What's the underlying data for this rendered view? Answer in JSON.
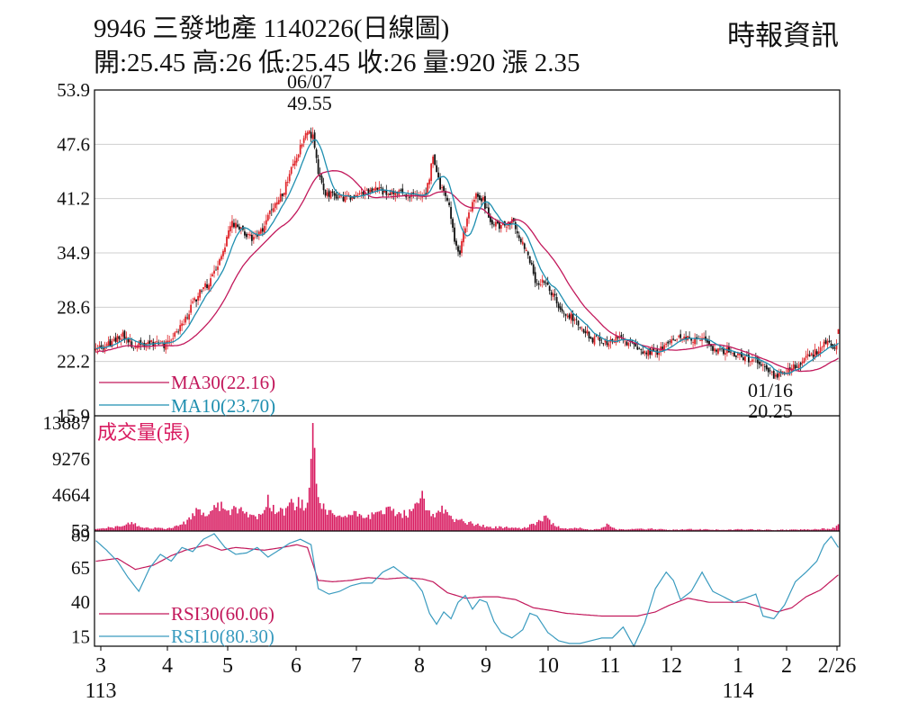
{
  "header": {
    "title": "9946  三發地產 1140226(日線圖)",
    "stats": "開:25.45 高:26 低:25.45 收:26 量:920 漲 2.35",
    "source": "時報資訊"
  },
  "colors": {
    "up": "#e0262b",
    "down": "#111111",
    "ma30": "#c2185b",
    "ma10": "#1f8fb0",
    "volume": "#d81b60",
    "rsi30": "#c2185b",
    "rsi10": "#3a9bbf",
    "frame": "#000000",
    "grid": "#cfcfcf"
  },
  "chart_data": [
    {
      "type": "candlestick",
      "panel": "price",
      "ylim": [
        15.9,
        53.9
      ],
      "yticks": [
        "53.9",
        "47.6",
        "41.2",
        "34.9",
        "28.6",
        "22.2",
        "15.9"
      ],
      "grid": true,
      "xticks": [
        {
          "label": "3",
          "sub": "113"
        },
        {
          "label": "4"
        },
        {
          "label": "5"
        },
        {
          "label": "6"
        },
        {
          "label": "7"
        },
        {
          "label": "8"
        },
        {
          "label": "9"
        },
        {
          "label": "10"
        },
        {
          "label": "11"
        },
        {
          "label": "12"
        },
        {
          "label": "1",
          "sub": "114"
        },
        {
          "label": "2"
        },
        {
          "label": "2/26"
        }
      ],
      "close_path": [
        [
          0,
          23.5
        ],
        [
          8,
          24.5
        ],
        [
          15,
          25.2
        ],
        [
          22,
          24.0
        ],
        [
          30,
          24.5
        ],
        [
          38,
          24.2
        ],
        [
          45,
          25.5
        ],
        [
          52,
          28.0
        ],
        [
          58,
          30.5
        ],
        [
          64,
          31.5
        ],
        [
          70,
          34.5
        ],
        [
          76,
          38.5
        ],
        [
          82,
          37.5
        ],
        [
          88,
          36.5
        ],
        [
          94,
          38.0
        ],
        [
          100,
          41.0
        ],
        [
          105,
          42.0
        ],
        [
          109,
          45.0
        ],
        [
          113,
          46.5
        ],
        [
          117,
          49.0
        ],
        [
          121,
          48.5
        ],
        [
          124,
          44.5
        ],
        [
          128,
          42.0
        ],
        [
          135,
          41.3
        ],
        [
          145,
          41.5
        ],
        [
          155,
          42.3
        ],
        [
          165,
          42.0
        ],
        [
          175,
          41.5
        ],
        [
          184,
          41.5
        ],
        [
          188,
          46.0
        ],
        [
          192,
          42.5
        ],
        [
          197,
          40.5
        ],
        [
          200,
          36.0
        ],
        [
          203,
          35.0
        ],
        [
          207,
          39.0
        ],
        [
          212,
          41.5
        ],
        [
          216,
          41.0
        ],
        [
          220,
          38.5
        ],
        [
          225,
          38.0
        ],
        [
          232,
          38.5
        ],
        [
          236,
          37.0
        ],
        [
          242,
          34.0
        ],
        [
          246,
          31.0
        ],
        [
          250,
          31.5
        ],
        [
          255,
          30.0
        ],
        [
          260,
          28.0
        ],
        [
          265,
          27.5
        ],
        [
          270,
          26.5
        ],
        [
          276,
          25.0
        ],
        [
          282,
          24.5
        ],
        [
          290,
          24.8
        ],
        [
          298,
          24.5
        ],
        [
          305,
          23.5
        ],
        [
          312,
          23.3
        ],
        [
          320,
          24.5
        ],
        [
          326,
          25.0
        ],
        [
          332,
          25.0
        ],
        [
          340,
          24.5
        ],
        [
          346,
          23.5
        ],
        [
          352,
          23.5
        ],
        [
          358,
          23.0
        ],
        [
          365,
          22.5
        ],
        [
          372,
          22.0
        ],
        [
          378,
          20.5
        ],
        [
          383,
          21.0
        ],
        [
          388,
          21.5
        ],
        [
          392,
          22.0
        ],
        [
          396,
          22.5
        ],
        [
          402,
          23.5
        ],
        [
          406,
          24.5
        ],
        [
          412,
          24.0
        ],
        [
          414,
          26.0
        ]
      ],
      "high_mark": {
        "date": "06/07",
        "value": 49.55,
        "index": 121
      },
      "low_mark": {
        "date": "01/16",
        "value": 20.25,
        "index": 378
      },
      "series": [
        {
          "name": "MA30",
          "legend": "MA30(22.16)",
          "last": 22.16
        },
        {
          "name": "MA10",
          "legend": "MA10(23.70)",
          "last": 23.7
        }
      ]
    },
    {
      "type": "bar",
      "panel": "volume",
      "title": "成交量(張)",
      "ylim": [
        53,
        13887
      ],
      "yticks": [
        "13887",
        "9276",
        "4664",
        "53"
      ],
      "spikes": [
        [
          0,
          300
        ],
        [
          12,
          700
        ],
        [
          20,
          1200
        ],
        [
          28,
          500
        ],
        [
          40,
          400
        ],
        [
          48,
          900
        ],
        [
          52,
          1800
        ],
        [
          56,
          3000
        ],
        [
          60,
          2400
        ],
        [
          64,
          2600
        ],
        [
          70,
          3800
        ],
        [
          74,
          2700
        ],
        [
          78,
          3100
        ],
        [
          84,
          2500
        ],
        [
          88,
          2100
        ],
        [
          93,
          2300
        ],
        [
          96,
          4700
        ],
        [
          99,
          3400
        ],
        [
          104,
          2900
        ],
        [
          108,
          3700
        ],
        [
          113,
          4400
        ],
        [
          117,
          3000
        ],
        [
          119,
          5600
        ],
        [
          120,
          9300
        ],
        [
          121,
          13887
        ],
        [
          122,
          10700
        ],
        [
          124,
          4400
        ],
        [
          128,
          2800
        ],
        [
          135,
          2000
        ],
        [
          145,
          2600
        ],
        [
          155,
          2200
        ],
        [
          162,
          3100
        ],
        [
          170,
          2300
        ],
        [
          176,
          2600
        ],
        [
          180,
          3600
        ],
        [
          182,
          5200
        ],
        [
          185,
          2700
        ],
        [
          190,
          2400
        ],
        [
          193,
          3300
        ],
        [
          198,
          2000
        ],
        [
          203,
          1500
        ],
        [
          208,
          1200
        ],
        [
          213,
          1000
        ],
        [
          220,
          600
        ],
        [
          226,
          600
        ],
        [
          232,
          500
        ],
        [
          238,
          400
        ],
        [
          242,
          900
        ],
        [
          246,
          1200
        ],
        [
          250,
          2000
        ],
        [
          253,
          1500
        ],
        [
          256,
          700
        ],
        [
          262,
          400
        ],
        [
          270,
          500
        ],
        [
          275,
          200
        ],
        [
          280,
          300
        ],
        [
          285,
          1000
        ],
        [
          290,
          300
        ],
        [
          300,
          300
        ],
        [
          310,
          400
        ],
        [
          320,
          200
        ],
        [
          330,
          300
        ],
        [
          340,
          300
        ],
        [
          350,
          200
        ],
        [
          360,
          300
        ],
        [
          370,
          250
        ],
        [
          380,
          200
        ],
        [
          390,
          250
        ],
        [
          400,
          250
        ],
        [
          405,
          400
        ],
        [
          410,
          300
        ],
        [
          414,
          920
        ]
      ],
      "last": 920
    },
    {
      "type": "line",
      "panel": "rsi",
      "ylim": [
        8,
        92
      ],
      "yticks": [
        "89",
        "65",
        "40",
        "15"
      ],
      "series": [
        {
          "name": "RSI30",
          "legend": "RSI30(60.06)",
          "last": 60.06,
          "values": [
            [
              0,
              70
            ],
            [
              12,
              72
            ],
            [
              22,
              64
            ],
            [
              32,
              67
            ],
            [
              42,
              74
            ],
            [
              50,
              78
            ],
            [
              62,
              82
            ],
            [
              70,
              78
            ],
            [
              78,
              80
            ],
            [
              86,
              79
            ],
            [
              94,
              78
            ],
            [
              104,
              80
            ],
            [
              112,
              82
            ],
            [
              118,
              80
            ],
            [
              124,
              56
            ],
            [
              132,
              55
            ],
            [
              142,
              56
            ],
            [
              152,
              58
            ],
            [
              162,
              57
            ],
            [
              172,
              58
            ],
            [
              182,
              57
            ],
            [
              188,
              55
            ],
            [
              196,
              47
            ],
            [
              206,
              43
            ],
            [
              216,
              44
            ],
            [
              224,
              44
            ],
            [
              234,
              42
            ],
            [
              244,
              36
            ],
            [
              254,
              34
            ],
            [
              262,
              32
            ],
            [
              272,
              31
            ],
            [
              282,
              30
            ],
            [
              292,
              30
            ],
            [
              302,
              30
            ],
            [
              312,
              33
            ],
            [
              320,
              38
            ],
            [
              330,
              43
            ],
            [
              342,
              40
            ],
            [
              352,
              40
            ],
            [
              362,
              40
            ],
            [
              372,
              36
            ],
            [
              380,
              33
            ],
            [
              388,
              36
            ],
            [
              396,
              44
            ],
            [
              404,
              49
            ],
            [
              414,
              60
            ]
          ]
        },
        {
          "name": "RSI10",
          "legend": "RSI10(80.30)",
          "last": 80.3,
          "values": [
            [
              0,
              85
            ],
            [
              6,
              78
            ],
            [
              12,
              70
            ],
            [
              18,
              58
            ],
            [
              24,
              48
            ],
            [
              30,
              65
            ],
            [
              36,
              75
            ],
            [
              42,
              70
            ],
            [
              48,
              80
            ],
            [
              54,
              77
            ],
            [
              60,
              86
            ],
            [
              66,
              90
            ],
            [
              72,
              80
            ],
            [
              78,
              75
            ],
            [
              84,
              76
            ],
            [
              90,
              80
            ],
            [
              96,
              73
            ],
            [
              102,
              78
            ],
            [
              108,
              83
            ],
            [
              114,
              86
            ],
            [
              120,
              82
            ],
            [
              124,
              50
            ],
            [
              130,
              46
            ],
            [
              136,
              48
            ],
            [
              142,
              52
            ],
            [
              148,
              54
            ],
            [
              154,
              54
            ],
            [
              160,
              62
            ],
            [
              166,
              66
            ],
            [
              172,
              60
            ],
            [
              178,
              55
            ],
            [
              182,
              48
            ],
            [
              186,
              32
            ],
            [
              190,
              24
            ],
            [
              194,
              33
            ],
            [
              198,
              28
            ],
            [
              202,
              40
            ],
            [
              206,
              45
            ],
            [
              210,
              35
            ],
            [
              214,
              42
            ],
            [
              218,
              40
            ],
            [
              222,
              26
            ],
            [
              226,
              18
            ],
            [
              232,
              14
            ],
            [
              238,
              20
            ],
            [
              242,
              32
            ],
            [
              246,
              30
            ],
            [
              252,
              18
            ],
            [
              258,
              12
            ],
            [
              264,
              10
            ],
            [
              270,
              10
            ],
            [
              276,
              12
            ],
            [
              282,
              14
            ],
            [
              288,
              14
            ],
            [
              294,
              22
            ],
            [
              300,
              8
            ],
            [
              306,
              25
            ],
            [
              312,
              50
            ],
            [
              318,
              62
            ],
            [
              322,
              56
            ],
            [
              326,
              42
            ],
            [
              332,
              48
            ],
            [
              338,
              62
            ],
            [
              344,
              48
            ],
            [
              350,
              44
            ],
            [
              356,
              40
            ],
            [
              362,
              43
            ],
            [
              368,
              46
            ],
            [
              372,
              30
            ],
            [
              378,
              28
            ],
            [
              384,
              38
            ],
            [
              390,
              55
            ],
            [
              396,
              62
            ],
            [
              402,
              70
            ],
            [
              406,
              82
            ],
            [
              410,
              88
            ],
            [
              414,
              80
            ]
          ]
        }
      ]
    }
  ]
}
